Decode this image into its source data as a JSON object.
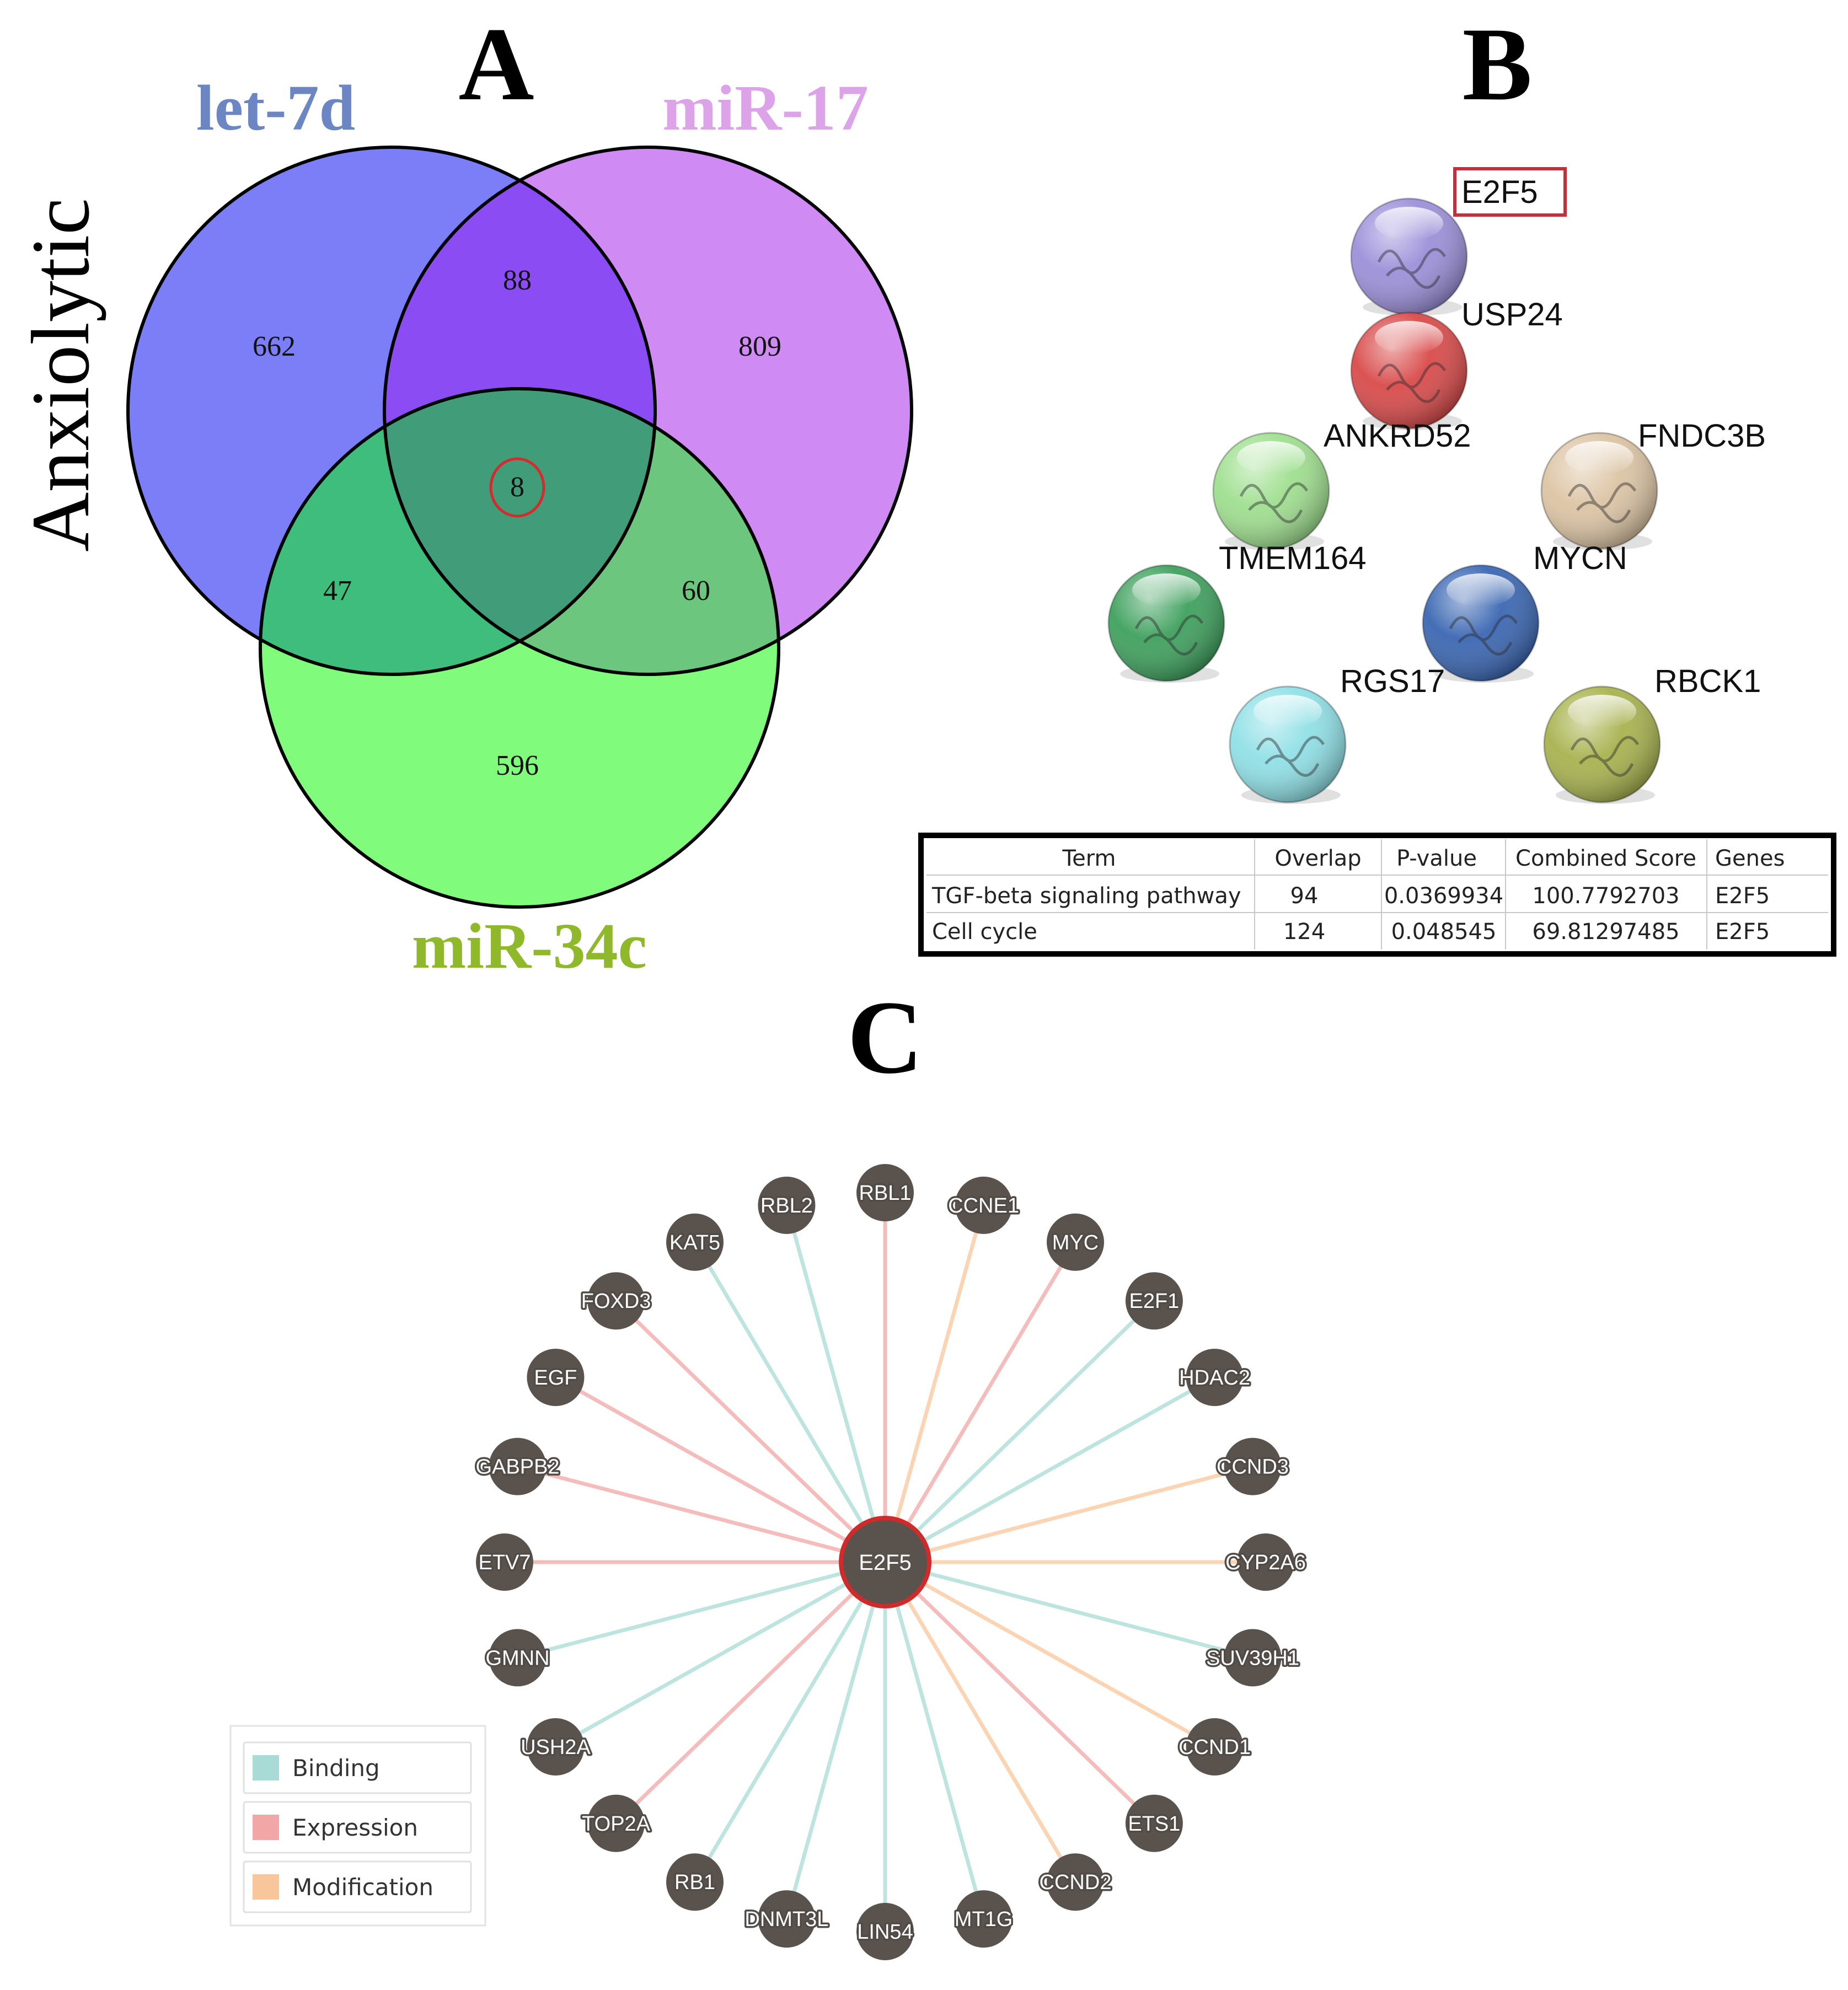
{
  "panels": {
    "a": "A",
    "b": "B",
    "c": "C"
  },
  "venn": {
    "side_label": "Anxiolytic",
    "sets": [
      {
        "name": "let-7d",
        "color": "#7b7ef7",
        "title_color": "#6c86c3"
      },
      {
        "name": "miR-17",
        "color": "#cf8af4",
        "title_color": "#dca3e8"
      },
      {
        "name": "miR-34c",
        "color": "#80fb7c",
        "title_color": "#8fb82a"
      }
    ],
    "regions": {
      "let7d_only": "662",
      "mir17_only": "809",
      "mir34c_only": "596",
      "let7d_mir17": "88",
      "let7d_mir34c": "47",
      "mir17_mir34c": "60",
      "all_three": "8"
    },
    "colors": {
      "let7d_mir17": "#8b4cf4",
      "let7d_mir34c": "#3fbd7c",
      "mir17_mir34c": "#6dc67e",
      "all_three": "#419c7a",
      "highlight": "#d42c2c"
    }
  },
  "string_network": {
    "proteins": [
      {
        "name": "E2F5",
        "color": "#9c8fd9",
        "highlighted": true
      },
      {
        "name": "USP24",
        "color": "#d94a4a"
      },
      {
        "name": "ANKRD52",
        "color": "#9fdf8f"
      },
      {
        "name": "FNDC3B",
        "color": "#dcc4a4"
      },
      {
        "name": "TMEM164",
        "color": "#3ea05d"
      },
      {
        "name": "MYCN",
        "color": "#3a66b2"
      },
      {
        "name": "RGS17",
        "color": "#8fe0e6"
      },
      {
        "name": "RBCK1",
        "color": "#a8b24e"
      }
    ],
    "highlight_color": "#c0313a"
  },
  "enrichment_table": {
    "headers": [
      "Term",
      "Overlap",
      "P-value",
      "Combined Score",
      "Genes"
    ],
    "rows": [
      [
        "TGF-beta signaling pathway",
        "94",
        "0.0369934",
        "100.7792703",
        "E2F5"
      ],
      [
        "Cell cycle",
        "124",
        "0.048545",
        "69.81297485",
        "E2F5"
      ]
    ]
  },
  "gene_network": {
    "hub": "E2F5",
    "hub_color": "#5a524d",
    "hub_border": "#d12a2a",
    "node_color": "#5a524d",
    "nodes": [
      {
        "name": "RBL1",
        "interaction": "Expression"
      },
      {
        "name": "CCNE1",
        "interaction": "Modification"
      },
      {
        "name": "MYC",
        "interaction": "Expression"
      },
      {
        "name": "E2F1",
        "interaction": "Binding"
      },
      {
        "name": "HDAC2",
        "interaction": "Binding"
      },
      {
        "name": "CCND3",
        "interaction": "Modification"
      },
      {
        "name": "CYP2A6",
        "interaction": "Modification"
      },
      {
        "name": "SUV39H1",
        "interaction": "Binding"
      },
      {
        "name": "CCND1",
        "interaction": "Modification"
      },
      {
        "name": "ETS1",
        "interaction": "Expression"
      },
      {
        "name": "CCND2",
        "interaction": "Modification"
      },
      {
        "name": "MT1G",
        "interaction": "Binding"
      },
      {
        "name": "LIN54",
        "interaction": "Binding"
      },
      {
        "name": "DNMT3L",
        "interaction": "Binding"
      },
      {
        "name": "RB1",
        "interaction": "Binding"
      },
      {
        "name": "TOP2A",
        "interaction": "Expression"
      },
      {
        "name": "USH2A",
        "interaction": "Binding"
      },
      {
        "name": "GMNN",
        "interaction": "Binding"
      },
      {
        "name": "ETV7",
        "interaction": "Expression"
      },
      {
        "name": "GABPB2",
        "interaction": "Expression"
      },
      {
        "name": "EGF",
        "interaction": "Expression"
      },
      {
        "name": "FOXD3",
        "interaction": "Expression"
      },
      {
        "name": "KAT5",
        "interaction": "Binding"
      },
      {
        "name": "RBL2",
        "interaction": "Binding"
      }
    ],
    "legend": [
      {
        "label": "Binding",
        "color": "#a8dbd6"
      },
      {
        "label": "Expression",
        "color": "#f2a6a6"
      },
      {
        "label": "Modification",
        "color": "#f9c59a"
      }
    ]
  }
}
